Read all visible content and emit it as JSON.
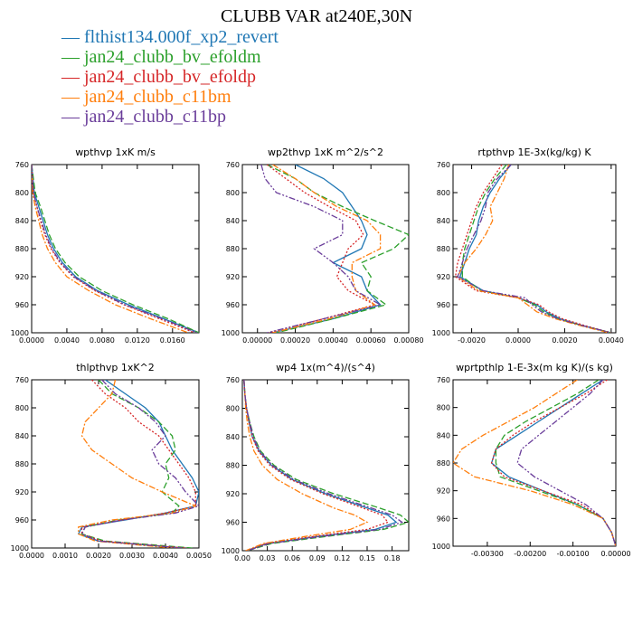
{
  "title": "CLUBB VAR at240E,30N",
  "legend": [
    {
      "name": "flthist134.000f_xp2_revert",
      "color": "#1f77b4",
      "dash": ""
    },
    {
      "name": "jan24_clubb_bv_efoldm",
      "color": "#2ca02c",
      "dash": "7 3"
    },
    {
      "name": "jan24_clubb_bv_efoldp",
      "color": "#d62728",
      "dash": "2 2"
    },
    {
      "name": "jan24_clubb_c11bm",
      "color": "#ff7f0e",
      "dash": "7 2 2 2"
    },
    {
      "name": "jan24_clubb_c11bp",
      "color": "#6a3d9a",
      "dash": "7 2 2 2 2 2"
    }
  ],
  "chart_data": [
    {
      "type": "line",
      "title": "wpthvp  1xK m/s",
      "xlim": [
        0,
        0.019
      ],
      "ylim": [
        760,
        1000
      ],
      "xticks": [
        0,
        0.004,
        0.008,
        0.012,
        0.016
      ],
      "xtick_labels": [
        "0.0000",
        "0.0040",
        "0.0080",
        "0.0120",
        "0.0160"
      ],
      "yticks": [
        760,
        800,
        840,
        880,
        920,
        960,
        1000
      ],
      "y": [
        760,
        800,
        820,
        840,
        860,
        880,
        900,
        920,
        940,
        960,
        980,
        1000
      ],
      "series": [
        {
          "x": [
            0,
            0.0003,
            0.0008,
            0.0013,
            0.0018,
            0.0025,
            0.0035,
            0.005,
            0.0075,
            0.011,
            0.015,
            0.019
          ]
        },
        {
          "x": [
            0,
            0.0004,
            0.001,
            0.0015,
            0.002,
            0.0027,
            0.0038,
            0.0054,
            0.008,
            0.0115,
            0.0155,
            0.019
          ]
        },
        {
          "x": [
            0,
            0.0002,
            0.0006,
            0.001,
            0.0015,
            0.0022,
            0.0032,
            0.0047,
            0.0072,
            0.0105,
            0.0145,
            0.0185
          ]
        },
        {
          "x": [
            0,
            0.0001,
            0.0004,
            0.0008,
            0.0012,
            0.0018,
            0.0027,
            0.004,
            0.0065,
            0.0095,
            0.0135,
            0.0178
          ]
        },
        {
          "x": [
            0,
            0.0002,
            0.0006,
            0.0011,
            0.0016,
            0.0023,
            0.0033,
            0.0048,
            0.0073,
            0.0106,
            0.0148,
            0.0188
          ]
        }
      ]
    },
    {
      "type": "line",
      "title": "wp2thvp  1xK m^2/s^2",
      "xlim": [
        -8e-05,
        0.0008
      ],
      "ylim": [
        760,
        1000
      ],
      "xticks": [
        0,
        0.0002,
        0.0004,
        0.0006,
        0.0008
      ],
      "xtick_labels": [
        "0.00000",
        "0.00020",
        "0.00040",
        "0.00060",
        "0.00080"
      ],
      "yticks": [
        760,
        800,
        840,
        880,
        920,
        960,
        1000
      ],
      "y": [
        760,
        780,
        800,
        820,
        840,
        860,
        880,
        900,
        920,
        940,
        960,
        980,
        1000
      ],
      "series": [
        {
          "x": [
            0.0002,
            0.00035,
            0.00045,
            0.0005,
            0.00055,
            0.00058,
            0.00055,
            0.0004,
            0.00055,
            0.00058,
            0.00065,
            0.0004,
            8e-05
          ]
        },
        {
          "x": [
            5e-05,
            0.0002,
            0.0003,
            0.00045,
            0.00062,
            0.0008,
            0.00072,
            0.00055,
            0.0006,
            0.00058,
            0.00068,
            0.0004,
            0.0001
          ]
        },
        {
          "x": [
            5e-05,
            0.00015,
            0.00025,
            0.00038,
            0.00052,
            0.00056,
            0.00048,
            0.00045,
            0.00042,
            0.00048,
            0.00062,
            0.00035,
            6e-05
          ]
        },
        {
          "x": [
            8e-05,
            0.0002,
            0.0003,
            0.00042,
            0.00058,
            0.00065,
            0.00065,
            0.0005,
            0.0005,
            0.00052,
            0.00062,
            0.00038,
            8e-05
          ]
        },
        {
          "x": [
            2e-05,
            4e-05,
            0.0001,
            0.0003,
            0.00045,
            0.00045,
            0.0003,
            0.0004,
            0.00048,
            0.00052,
            0.00065,
            0.00035,
            5e-05
          ]
        }
      ]
    },
    {
      "type": "line",
      "title": "rtpthvp  1E-3x(kg/kg) K",
      "xlim": [
        -0.0028,
        0.0042
      ],
      "ylim": [
        760,
        1000
      ],
      "xticks": [
        -0.002,
        0,
        0.002,
        0.004
      ],
      "xtick_labels": [
        "-0.0020",
        "0.0000",
        "0.0020",
        "0.0040"
      ],
      "yticks": [
        760,
        800,
        840,
        880,
        920,
        960,
        1000
      ],
      "y": [
        760,
        780,
        800,
        820,
        840,
        860,
        880,
        900,
        920,
        940,
        950,
        960,
        970,
        980,
        990,
        1000
      ],
      "series": [
        {
          "x": [
            -0.0003,
            -0.0008,
            -0.0012,
            -0.0015,
            -0.0017,
            -0.0018,
            -0.0021,
            -0.0023,
            -0.0025,
            -0.0015,
            0,
            0.0008,
            0.0012,
            0.0018,
            0.0028,
            0.004
          ]
        },
        {
          "x": [
            -0.0005,
            -0.001,
            -0.0014,
            -0.0017,
            -0.0019,
            -0.0021,
            -0.0023,
            -0.0024,
            -0.0024,
            -0.0016,
            0,
            0.0007,
            0.0011,
            0.0017,
            0.0028,
            0.004
          ]
        },
        {
          "x": [
            -0.0007,
            -0.0011,
            -0.0015,
            -0.0018,
            -0.002,
            -0.0022,
            -0.0024,
            -0.0026,
            -0.0027,
            -0.0018,
            0,
            0.0009,
            0.0013,
            0.0019,
            0.0029,
            0.004
          ]
        },
        {
          "x": [
            -0.0004,
            -0.0006,
            -0.0009,
            -0.0012,
            -0.0011,
            -0.0014,
            -0.0018,
            -0.0023,
            -0.0026,
            -0.0017,
            0,
            0.0004,
            0.0008,
            0.0016,
            0.0027,
            0.0039
          ]
        },
        {
          "x": [
            -0.0003,
            -0.0009,
            -0.0013,
            -0.0014,
            -0.0016,
            -0.0019,
            -0.0022,
            -0.0024,
            -0.0026,
            -0.0015,
            0.0003,
            0.0006,
            0.001,
            0.0017,
            0.0028,
            0.004
          ]
        }
      ]
    },
    {
      "type": "line",
      "title": "thlpthvp  1xK^2",
      "xlim": [
        0,
        0.005
      ],
      "ylim": [
        760,
        1000
      ],
      "xticks": [
        0,
        0.001,
        0.002,
        0.003,
        0.004,
        0.005
      ],
      "xtick_labels": [
        "0.0000",
        "0.0010",
        "0.0020",
        "0.0030",
        "0.0040",
        "0.0050"
      ],
      "yticks": [
        760,
        800,
        840,
        880,
        920,
        960,
        1000
      ],
      "y": [
        760,
        780,
        800,
        820,
        840,
        860,
        880,
        900,
        920,
        940,
        950,
        960,
        970,
        980,
        990,
        1000
      ],
      "series": [
        {
          "x": [
            0.0022,
            0.0028,
            0.0034,
            0.0038,
            0.004,
            0.0042,
            0.0045,
            0.0048,
            0.005,
            0.0049,
            0.004,
            0.0028,
            0.0015,
            0.0014,
            0.002,
            0.0045
          ]
        },
        {
          "x": [
            0.002,
            0.0024,
            0.0032,
            0.0038,
            0.0042,
            0.0043,
            0.004,
            0.0041,
            0.0039,
            0.0044,
            0.0042,
            0.0026,
            0.0016,
            0.0015,
            0.0022,
            0.0048
          ]
        },
        {
          "x": [
            0.0018,
            0.0022,
            0.0028,
            0.0032,
            0.0038,
            0.0041,
            0.0044,
            0.0047,
            0.0049,
            0.0049,
            0.004,
            0.0027,
            0.0015,
            0.0015,
            0.0021,
            0.0046
          ]
        },
        {
          "x": [
            0.0025,
            0.0024,
            0.002,
            0.0016,
            0.0015,
            0.0018,
            0.0024,
            0.003,
            0.0039,
            0.0049,
            0.0042,
            0.0024,
            0.0014,
            0.0014,
            0.0019,
            0.0042
          ]
        },
        {
          "x": [
            0.0021,
            0.0025,
            0.0032,
            0.0037,
            0.004,
            0.0036,
            0.0038,
            0.0043,
            0.0046,
            0.005,
            0.0043,
            0.0027,
            0.0016,
            0.0015,
            0.002,
            0.0045
          ]
        }
      ]
    },
    {
      "type": "line",
      "title": "wp4  1x(m^4)/(s^4)",
      "xlim": [
        0,
        0.2
      ],
      "ylim": [
        760,
        1000
      ],
      "xticks": [
        0,
        0.03,
        0.06,
        0.09,
        0.12,
        0.15,
        0.18
      ],
      "xtick_labels": [
        "0.00",
        "0.03",
        "0.06",
        "0.09",
        "0.12",
        "0.15",
        "0.18"
      ],
      "yticks": [
        760,
        800,
        840,
        880,
        920,
        960,
        1000
      ],
      "y": [
        760,
        780,
        800,
        820,
        840,
        860,
        880,
        900,
        920,
        940,
        950,
        960,
        970,
        980,
        990,
        1000
      ],
      "series": [
        {
          "x": [
            0.002,
            0.003,
            0.005,
            0.008,
            0.012,
            0.02,
            0.035,
            0.06,
            0.1,
            0.15,
            0.175,
            0.185,
            0.16,
            0.09,
            0.03,
            0.005
          ]
        },
        {
          "x": [
            0.002,
            0.003,
            0.005,
            0.009,
            0.014,
            0.022,
            0.038,
            0.065,
            0.11,
            0.165,
            0.19,
            0.2,
            0.17,
            0.1,
            0.035,
            0.006
          ]
        },
        {
          "x": [
            0.002,
            0.003,
            0.005,
            0.008,
            0.012,
            0.019,
            0.033,
            0.058,
            0.097,
            0.145,
            0.168,
            0.175,
            0.15,
            0.085,
            0.028,
            0.005
          ]
        },
        {
          "x": [
            0.002,
            0.003,
            0.004,
            0.006,
            0.009,
            0.014,
            0.024,
            0.042,
            0.072,
            0.11,
            0.135,
            0.15,
            0.13,
            0.075,
            0.025,
            0.004
          ]
        },
        {
          "x": [
            0.002,
            0.003,
            0.005,
            0.009,
            0.013,
            0.021,
            0.036,
            0.062,
            0.104,
            0.155,
            0.18,
            0.192,
            0.165,
            0.095,
            0.032,
            0.006
          ]
        }
      ]
    },
    {
      "type": "line",
      "title": "wprtpthlp  1-E-3x(m kg K)/(s kg)",
      "xlim": [
        -0.0038,
        0
      ],
      "ylim": [
        760,
        1000
      ],
      "xticks": [
        -0.003,
        -0.002,
        -0.001,
        0
      ],
      "xtick_labels": [
        "-0.00300",
        "-0.00200",
        "-0.00100",
        "0.00000"
      ],
      "yticks": [
        760,
        800,
        840,
        880,
        920,
        960,
        1000
      ],
      "y": [
        760,
        780,
        800,
        820,
        840,
        860,
        880,
        900,
        920,
        940,
        960,
        980,
        1000
      ],
      "series": [
        {
          "x": [
            -0.0003,
            -0.0008,
            -0.0013,
            -0.0018,
            -0.0023,
            -0.0028,
            -0.0029,
            -0.0025,
            -0.0017,
            -0.0009,
            -0.0003,
            -0.0001,
            0
          ]
        },
        {
          "x": [
            -0.0004,
            -0.0009,
            -0.0015,
            -0.0021,
            -0.0026,
            -0.0028,
            -0.0028,
            -0.0027,
            -0.0018,
            -0.0009,
            -0.0003,
            -0.0001,
            0
          ]
        },
        {
          "x": [
            -0.0002,
            -0.0007,
            -0.0013,
            -0.0019,
            -0.0024,
            -0.0028,
            -0.0029,
            -0.0026,
            -0.0017,
            -0.0008,
            -0.0003,
            -0.0001,
            0
          ]
        },
        {
          "x": [
            -0.0009,
            -0.0014,
            -0.0019,
            -0.0025,
            -0.0031,
            -0.0036,
            -0.0038,
            -0.0033,
            -0.002,
            -0.001,
            -0.0003,
            -0.0001,
            0
          ]
        },
        {
          "x": [
            -0.0003,
            -0.0006,
            -0.001,
            -0.0014,
            -0.0018,
            -0.0022,
            -0.0023,
            -0.0019,
            -0.0013,
            -0.0007,
            -0.0003,
            -0.0001,
            0
          ]
        }
      ]
    }
  ]
}
